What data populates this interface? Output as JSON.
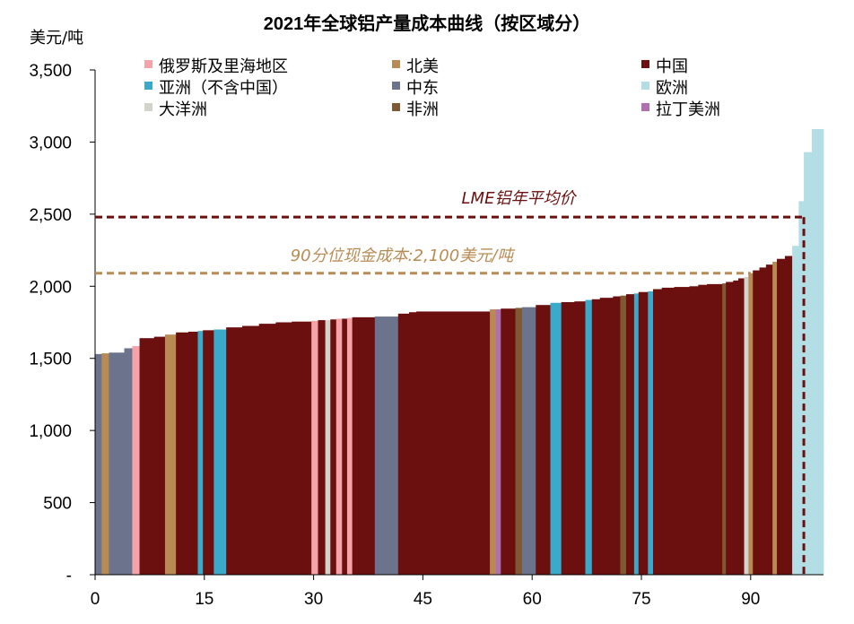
{
  "chart_data": {
    "type": "bar",
    "title": "2021年全球铝产量成本曲线（按区域分）",
    "ylabel": "美元/吨",
    "xlabel": "",
    "xlim": [
      0,
      100
    ],
    "ylim": [
      0,
      3500
    ],
    "xticks": [
      0,
      15,
      30,
      45,
      60,
      75,
      90
    ],
    "yticks": [
      {
        "value": 0,
        "label": "-"
      },
      {
        "value": 500,
        "label": "500"
      },
      {
        "value": 1000,
        "label": "1,000"
      },
      {
        "value": 1500,
        "label": "1,500"
      },
      {
        "value": 2000,
        "label": "2,000"
      },
      {
        "value": 2500,
        "label": "2,500"
      },
      {
        "value": 3000,
        "label": "3,000"
      },
      {
        "value": 3500,
        "label": "3,500"
      }
    ],
    "legend": [
      {
        "key": "russia",
        "label": "俄罗斯及里海地区",
        "color": "#F4A3A8"
      },
      {
        "key": "north_america",
        "label": "北美",
        "color": "#B98B54"
      },
      {
        "key": "china",
        "label": "中国",
        "color": "#6B0F0F"
      },
      {
        "key": "asia",
        "label": "亚洲（不含中国）",
        "color": "#3BA9C9"
      },
      {
        "key": "middle_east",
        "label": "中东",
        "color": "#6C738D"
      },
      {
        "key": "europe",
        "label": "欧洲",
        "color": "#B4DEE6"
      },
      {
        "key": "oceania",
        "label": "大洋洲",
        "color": "#D4D3CB"
      },
      {
        "key": "africa",
        "label": "非洲",
        "color": "#7E5A33"
      },
      {
        "key": "latin_america",
        "label": "拉丁美洲",
        "color": "#B26FB0"
      }
    ],
    "reference_lines": [
      {
        "label": "LME铝年平均价",
        "value": 2480,
        "x_end": 97.3,
        "color": "#6B0F0F"
      },
      {
        "label": "90分位现金成本:2,100美元/吨",
        "value": 2090,
        "x_end": 90,
        "color": "#B98B54"
      }
    ],
    "segments": [
      {
        "x0": 0,
        "x1": 0.9,
        "value": 1530,
        "region": "middle_east"
      },
      {
        "x0": 0.9,
        "x1": 1.9,
        "value": 1535,
        "region": "north_america"
      },
      {
        "x0": 1.9,
        "x1": 4.0,
        "value": 1540,
        "region": "middle_east"
      },
      {
        "x0": 4.0,
        "x1": 5.1,
        "value": 1570,
        "region": "middle_east"
      },
      {
        "x0": 5.1,
        "x1": 6.1,
        "value": 1585,
        "region": "russia"
      },
      {
        "x0": 6.1,
        "x1": 8.1,
        "value": 1640,
        "region": "china"
      },
      {
        "x0": 8.1,
        "x1": 9.6,
        "value": 1650,
        "region": "china"
      },
      {
        "x0": 9.6,
        "x1": 11.1,
        "value": 1665,
        "region": "north_america"
      },
      {
        "x0": 11.1,
        "x1": 12.8,
        "value": 1680,
        "region": "china"
      },
      {
        "x0": 12.8,
        "x1": 14.1,
        "value": 1685,
        "region": "china"
      },
      {
        "x0": 14.1,
        "x1": 14.8,
        "value": 1690,
        "region": "asia"
      },
      {
        "x0": 14.8,
        "x1": 16.3,
        "value": 1695,
        "region": "china"
      },
      {
        "x0": 16.3,
        "x1": 17.2,
        "value": 1700,
        "region": "asia"
      },
      {
        "x0": 17.2,
        "x1": 18.0,
        "value": 1700,
        "region": "asia"
      },
      {
        "x0": 18.0,
        "x1": 20.2,
        "value": 1715,
        "region": "china"
      },
      {
        "x0": 20.2,
        "x1": 22.5,
        "value": 1725,
        "region": "china"
      },
      {
        "x0": 22.5,
        "x1": 24.8,
        "value": 1740,
        "region": "china"
      },
      {
        "x0": 24.8,
        "x1": 27.0,
        "value": 1750,
        "region": "china"
      },
      {
        "x0": 27.0,
        "x1": 29.7,
        "value": 1755,
        "region": "china"
      },
      {
        "x0": 29.7,
        "x1": 30.6,
        "value": 1760,
        "region": "russia"
      },
      {
        "x0": 30.6,
        "x1": 31.6,
        "value": 1765,
        "region": "china"
      },
      {
        "x0": 31.6,
        "x1": 32.3,
        "value": 1765,
        "region": "oceania"
      },
      {
        "x0": 32.3,
        "x1": 33.1,
        "value": 1770,
        "region": "china"
      },
      {
        "x0": 33.1,
        "x1": 33.9,
        "value": 1775,
        "region": "russia"
      },
      {
        "x0": 33.9,
        "x1": 34.6,
        "value": 1775,
        "region": "china"
      },
      {
        "x0": 34.6,
        "x1": 35.3,
        "value": 1780,
        "region": "russia"
      },
      {
        "x0": 35.3,
        "x1": 38.4,
        "value": 1785,
        "region": "china"
      },
      {
        "x0": 38.4,
        "x1": 41.6,
        "value": 1790,
        "region": "middle_east"
      },
      {
        "x0": 41.6,
        "x1": 43.1,
        "value": 1810,
        "region": "china"
      },
      {
        "x0": 43.1,
        "x1": 44.1,
        "value": 1820,
        "region": "china"
      },
      {
        "x0": 44.1,
        "x1": 54.2,
        "value": 1825,
        "region": "china"
      },
      {
        "x0": 54.2,
        "x1": 55.0,
        "value": 1840,
        "region": "north_america"
      },
      {
        "x0": 55.0,
        "x1": 55.7,
        "value": 1840,
        "region": "latin_america"
      },
      {
        "x0": 55.7,
        "x1": 57.7,
        "value": 1845,
        "region": "china"
      },
      {
        "x0": 57.7,
        "x1": 58.6,
        "value": 1850,
        "region": "africa"
      },
      {
        "x0": 58.6,
        "x1": 60.5,
        "value": 1855,
        "region": "middle_east"
      },
      {
        "x0": 60.5,
        "x1": 62.5,
        "value": 1870,
        "region": "china"
      },
      {
        "x0": 62.5,
        "x1": 64.0,
        "value": 1885,
        "region": "asia"
      },
      {
        "x0": 64.0,
        "x1": 65.8,
        "value": 1890,
        "region": "china"
      },
      {
        "x0": 65.8,
        "x1": 67.3,
        "value": 1895,
        "region": "china"
      },
      {
        "x0": 67.3,
        "x1": 68.2,
        "value": 1905,
        "region": "asia"
      },
      {
        "x0": 68.2,
        "x1": 69.3,
        "value": 1910,
        "region": "china"
      },
      {
        "x0": 69.3,
        "x1": 71.1,
        "value": 1920,
        "region": "china"
      },
      {
        "x0": 71.1,
        "x1": 72.1,
        "value": 1930,
        "region": "china"
      },
      {
        "x0": 72.1,
        "x1": 72.9,
        "value": 1935,
        "region": "africa"
      },
      {
        "x0": 72.9,
        "x1": 74.0,
        "value": 1945,
        "region": "china"
      },
      {
        "x0": 74.0,
        "x1": 74.6,
        "value": 1950,
        "region": "asia"
      },
      {
        "x0": 74.6,
        "x1": 75.9,
        "value": 1960,
        "region": "china"
      },
      {
        "x0": 75.9,
        "x1": 76.6,
        "value": 1965,
        "region": "asia"
      },
      {
        "x0": 76.6,
        "x1": 77.8,
        "value": 1980,
        "region": "china"
      },
      {
        "x0": 77.8,
        "x1": 79.5,
        "value": 1990,
        "region": "china"
      },
      {
        "x0": 79.5,
        "x1": 81.6,
        "value": 1995,
        "region": "china"
      },
      {
        "x0": 81.6,
        "x1": 82.8,
        "value": 2000,
        "region": "china"
      },
      {
        "x0": 82.8,
        "x1": 84.0,
        "value": 2010,
        "region": "china"
      },
      {
        "x0": 84.0,
        "x1": 86.1,
        "value": 2015,
        "region": "china"
      },
      {
        "x0": 86.1,
        "x1": 86.6,
        "value": 2020,
        "region": "africa"
      },
      {
        "x0": 86.6,
        "x1": 87.6,
        "value": 2030,
        "region": "china"
      },
      {
        "x0": 87.6,
        "x1": 88.3,
        "value": 2040,
        "region": "china"
      },
      {
        "x0": 88.3,
        "x1": 89.1,
        "value": 2055,
        "region": "china"
      },
      {
        "x0": 89.1,
        "x1": 89.7,
        "value": 2065,
        "region": "oceania"
      },
      {
        "x0": 89.7,
        "x1": 90.3,
        "value": 2090,
        "region": "north_america"
      },
      {
        "x0": 90.3,
        "x1": 91.2,
        "value": 2110,
        "region": "china"
      },
      {
        "x0": 91.2,
        "x1": 92.1,
        "value": 2130,
        "region": "china"
      },
      {
        "x0": 92.1,
        "x1": 93.0,
        "value": 2150,
        "region": "china"
      },
      {
        "x0": 93.0,
        "x1": 93.6,
        "value": 2170,
        "region": "north_america"
      },
      {
        "x0": 93.6,
        "x1": 94.7,
        "value": 2190,
        "region": "china"
      },
      {
        "x0": 94.7,
        "x1": 95.7,
        "value": 2210,
        "region": "china"
      },
      {
        "x0": 95.7,
        "x1": 96.6,
        "value": 2280,
        "region": "europe"
      },
      {
        "x0": 96.6,
        "x1": 97.3,
        "value": 2590,
        "region": "europe"
      },
      {
        "x0": 97.3,
        "x1": 98.4,
        "value": 2930,
        "region": "europe"
      },
      {
        "x0": 98.4,
        "x1": 100,
        "value": 3090,
        "region": "europe"
      }
    ]
  }
}
